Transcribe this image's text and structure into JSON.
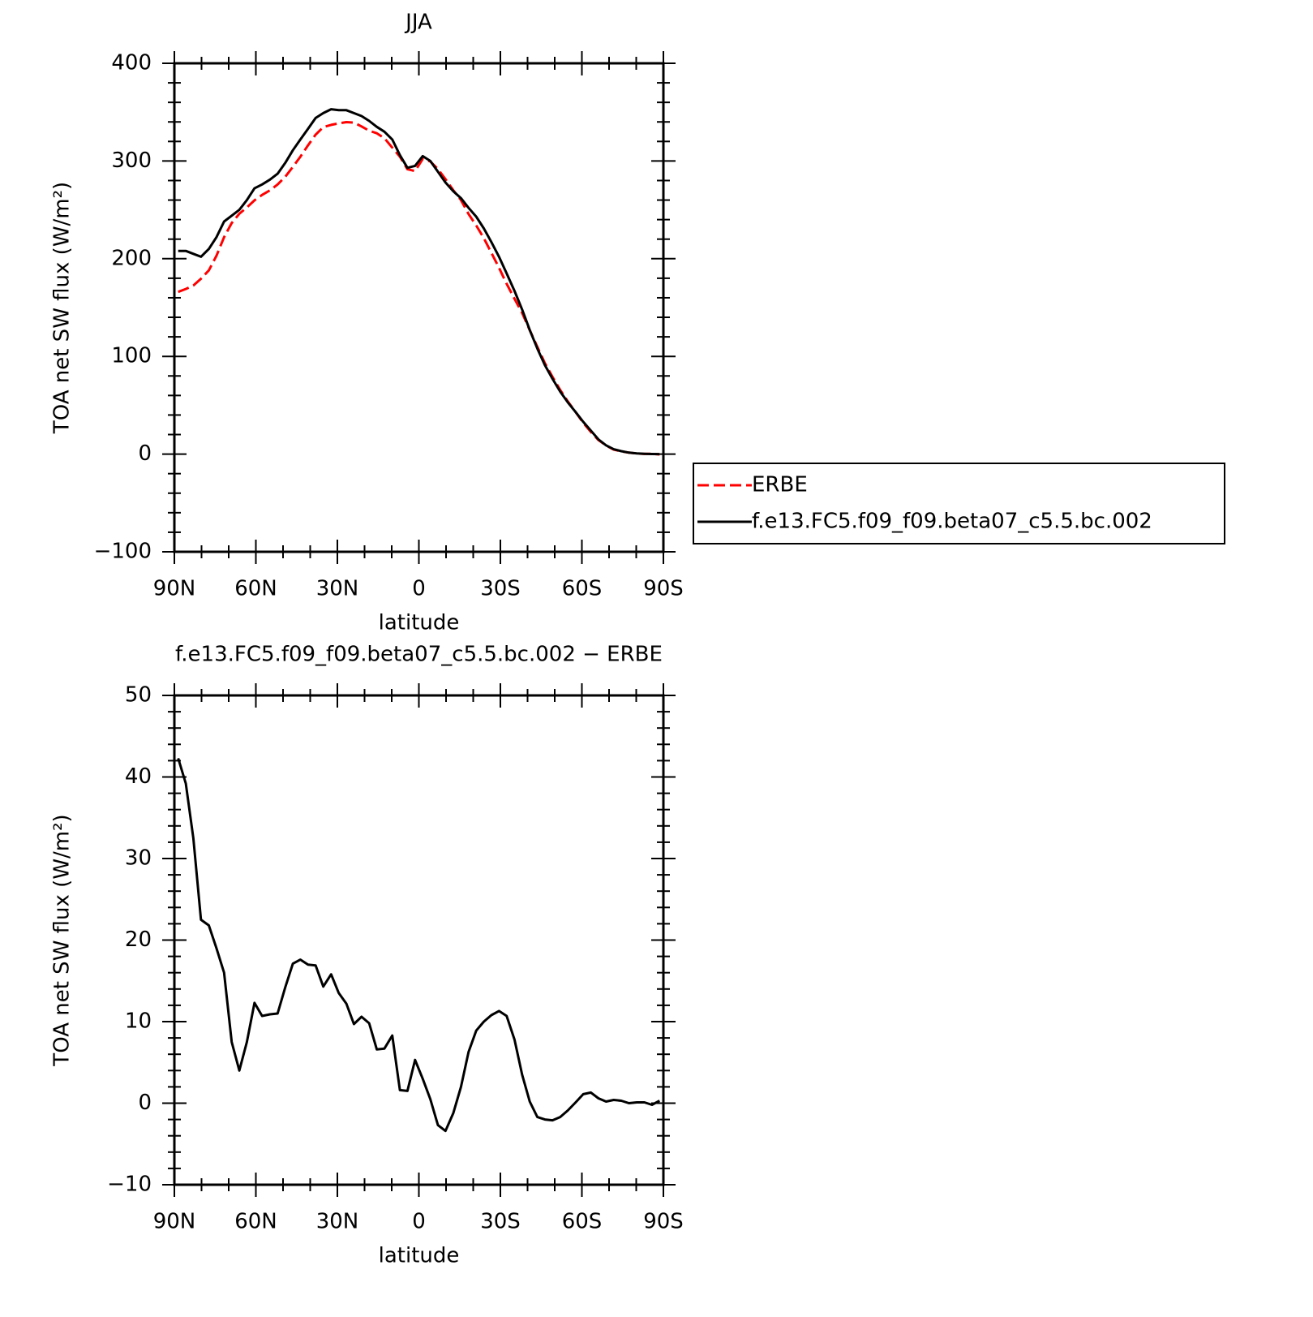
{
  "chart_data": [
    {
      "type": "line",
      "title": "JJA",
      "x_label": "latitude",
      "y_label": "TOA net SW flux (W/m²)",
      "x": [
        88.6,
        85.8,
        83.0,
        80.2,
        77.3,
        74.5,
        71.7,
        68.9,
        66.1,
        63.3,
        60.5,
        57.7,
        54.8,
        52.0,
        49.2,
        46.4,
        43.6,
        40.8,
        38.0,
        35.2,
        32.3,
        29.5,
        26.7,
        23.9,
        21.1,
        18.3,
        15.5,
        12.7,
        9.8,
        7.0,
        4.2,
        1.4,
        -1.4,
        -4.2,
        -7.0,
        -9.8,
        -12.7,
        -15.5,
        -18.3,
        -21.1,
        -23.9,
        -26.7,
        -29.5,
        -32.3,
        -35.2,
        -38.0,
        -40.8,
        -43.6,
        -46.4,
        -49.2,
        -52.0,
        -54.8,
        -57.7,
        -60.5,
        -63.3,
        -66.1,
        -68.9,
        -71.7,
        -74.5,
        -77.3,
        -80.2,
        -83.0,
        -85.8,
        -88.6
      ],
      "series": [
        {
          "name": "ERBE",
          "color": "#ff0000",
          "dashed": true,
          "values": [
            166,
            169,
            172.5,
            179.5,
            188,
            203,
            222,
            236.5,
            246,
            252.5,
            259.7,
            265.3,
            270,
            276,
            283.8,
            293.9,
            304.4,
            316,
            327,
            334.7,
            337,
            338.5,
            339.8,
            339.3,
            335.4,
            331,
            328.4,
            323.3,
            313.7,
            304.4,
            291.5,
            289.7,
            302,
            299.5,
            291.7,
            281.4,
            270,
            260,
            245.7,
            234,
            221,
            206,
            190.7,
            174.3,
            159,
            144.5,
            126.8,
            109.7,
            93,
            79,
            65.7,
            53.9,
            42.9,
            31.9,
            22.7,
            14.4,
            8.8,
            4.6,
            2.7,
            1.5,
            0.6,
            0.2,
            0.3,
            -0.3
          ]
        },
        {
          "name": "f.e13.FC5.f09_f09.beta07_c5.5.bc.002",
          "color": "#000000",
          "dashed": false,
          "values": [
            208,
            208,
            205,
            202,
            210,
            222,
            238,
            244,
            250,
            260,
            272,
            276,
            281,
            287,
            298,
            311,
            322,
            333,
            344,
            349,
            353,
            352,
            352,
            349,
            346,
            341,
            335,
            330,
            322,
            306,
            293,
            295,
            305,
            300,
            289,
            278,
            269,
            262,
            252,
            243,
            231,
            217,
            202,
            185,
            167,
            148,
            127,
            108,
            91,
            77,
            64,
            53,
            43,
            33,
            24,
            15,
            9,
            5,
            3,
            1.5,
            0.7,
            0.3,
            0.1,
            0
          ]
        }
      ],
      "xlim": [
        90,
        -90
      ],
      "xticks": [
        {
          "value": 90,
          "label": "90N"
        },
        {
          "value": 60,
          "label": "60N"
        },
        {
          "value": 30,
          "label": "30N"
        },
        0,
        {
          "value": -30,
          "label": "30S"
        },
        {
          "value": -60,
          "label": "60S"
        },
        {
          "value": -90,
          "label": "90S"
        }
      ],
      "ylim": [
        -100,
        400
      ],
      "yticks": [
        {
          "value": -100,
          "label": "−100"
        },
        0,
        100,
        200,
        300,
        400
      ],
      "legend": "right"
    },
    {
      "type": "line",
      "title": "f.e13.FC5.f09_f09.beta07_c5.5.bc.002 − ERBE",
      "x_label": "latitude",
      "y_label": "TOA net SW flux (W/m²)",
      "x": [
        88.6,
        85.8,
        83.0,
        80.2,
        77.3,
        74.5,
        71.7,
        68.9,
        66.1,
        63.3,
        60.5,
        57.7,
        54.8,
        52.0,
        49.2,
        46.4,
        43.6,
        40.8,
        38.0,
        35.2,
        32.3,
        29.5,
        26.7,
        23.9,
        21.1,
        18.3,
        15.5,
        12.7,
        9.8,
        7.0,
        4.2,
        1.4,
        -1.4,
        -4.2,
        -7.0,
        -9.8,
        -12.7,
        -15.5,
        -18.3,
        -21.1,
        -23.9,
        -26.7,
        -29.5,
        -32.3,
        -35.2,
        -38.0,
        -40.8,
        -43.6,
        -46.4,
        -49.2,
        -52.0,
        -54.8,
        -57.7,
        -60.5,
        -63.3,
        -66.1,
        -68.9,
        -71.7,
        -74.5,
        -77.3,
        -80.2,
        -83.0,
        -85.8,
        -88.6
      ],
      "series": [
        {
          "color": "#000000",
          "dashed": false,
          "values": [
            42.3,
            39.2,
            32.5,
            22.5,
            21.8,
            19,
            16,
            7.5,
            4,
            7.5,
            12.3,
            10.7,
            10.9,
            11,
            14.2,
            17.1,
            17.6,
            17,
            16.9,
            14.3,
            15.8,
            13.5,
            12.2,
            9.7,
            10.6,
            9.8,
            6.6,
            6.7,
            8.3,
            1.6,
            1.5,
            5.3,
            3,
            0.5,
            -2.7,
            -3.4,
            -1.2,
            2,
            6.3,
            8.9,
            10,
            10.8,
            11.3,
            10.7,
            7.8,
            3.5,
            0.2,
            -1.7,
            -2,
            -2.1,
            -1.7,
            -0.9,
            0.1,
            1.1,
            1.3,
            0.6,
            0.2,
            0.4,
            0.3,
            0,
            0.1,
            0.1,
            -0.2,
            0.3
          ]
        }
      ],
      "xlim": [
        90,
        -90
      ],
      "xticks": [
        {
          "value": 90,
          "label": "90N"
        },
        {
          "value": 60,
          "label": "60N"
        },
        {
          "value": 30,
          "label": "30N"
        },
        0,
        {
          "value": -30,
          "label": "30S"
        },
        {
          "value": -60,
          "label": "60S"
        },
        {
          "value": -90,
          "label": "90S"
        }
      ],
      "ylim": [
        -10,
        50
      ],
      "yticks": [
        {
          "value": -10,
          "label": "−10"
        },
        0,
        10,
        20,
        30,
        40,
        50
      ]
    }
  ]
}
